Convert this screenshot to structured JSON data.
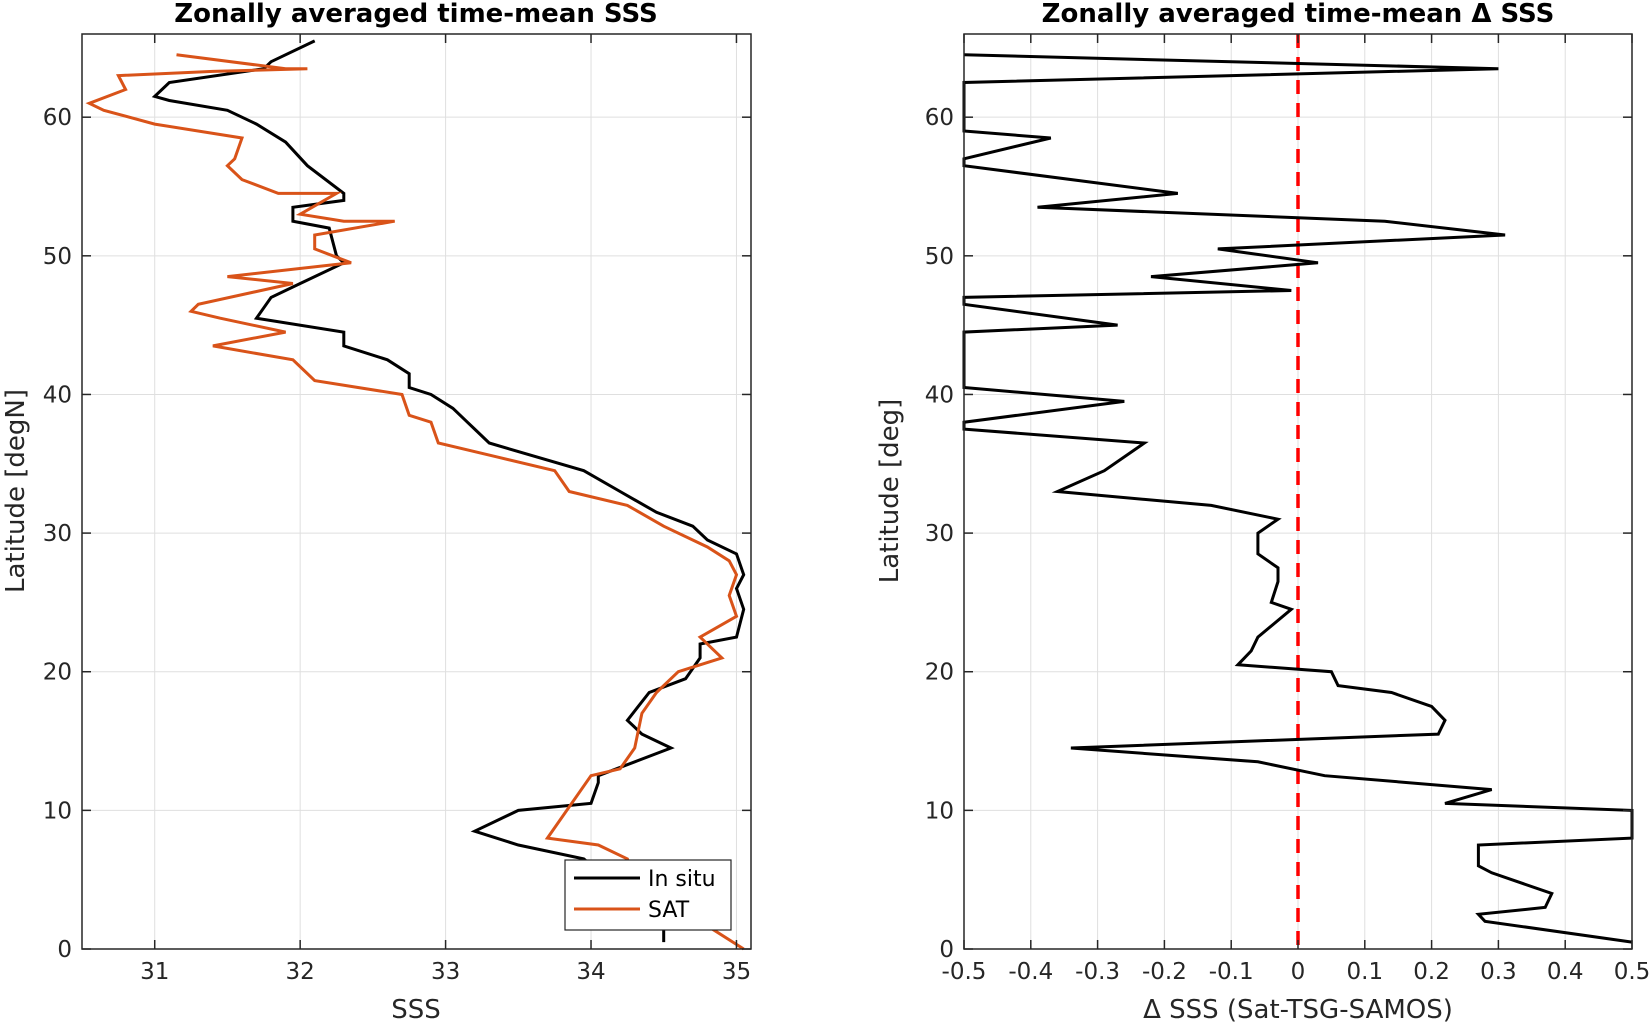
{
  "chart_data": [
    {
      "type": "line",
      "title": "Zonally averaged time-mean SSS",
      "xlabel": "SSS",
      "ylabel": "Latitude [degN]",
      "xlim": [
        30.5,
        35.1
      ],
      "ylim": [
        0,
        66
      ],
      "xticks": [
        31,
        32,
        33,
        34,
        35
      ],
      "yticks": [
        0,
        10,
        20,
        30,
        40,
        50,
        60
      ],
      "grid": true,
      "legend": {
        "position": "bottom-right"
      },
      "series": [
        {
          "name": "In situ",
          "color": "#000000",
          "x": [
            32.1,
            31.8,
            31.75,
            31.1,
            31.0,
            31.1,
            31.5,
            31.7,
            31.9,
            32.05,
            32.3,
            32.3,
            31.95,
            31.95,
            32.2,
            32.25,
            32.3,
            32.0,
            31.8,
            31.7,
            32.3,
            32.3,
            32.6,
            32.75,
            32.75,
            32.9,
            33.05,
            33.15,
            33.2,
            33.3,
            33.95,
            34.2,
            34.45,
            34.7,
            34.8,
            35.0,
            35.05,
            35.0,
            35.05,
            35.0,
            34.75,
            34.75,
            34.65,
            34.4,
            34.25,
            34.35,
            34.55,
            34.05,
            34.05,
            34.0,
            33.5,
            33.2,
            33.5,
            33.95,
            34.5,
            34.5
          ],
          "y": [
            65.5,
            64,
            63.5,
            62.5,
            61.5,
            61.2,
            60.5,
            59.5,
            58.2,
            56.5,
            54.5,
            54,
            53.5,
            52.5,
            52.0,
            50,
            49.5,
            48,
            47,
            45.5,
            44.5,
            43.5,
            42.5,
            41.5,
            40.5,
            40,
            39,
            38,
            37.5,
            36.5,
            34.5,
            33,
            31.5,
            30.5,
            29.5,
            28.5,
            27,
            26,
            24.5,
            22.5,
            22,
            21,
            19.5,
            18.5,
            16.5,
            15.5,
            14.5,
            12.5,
            12,
            10.5,
            10,
            8.5,
            7.5,
            6.5,
            1.5,
            0.5
          ]
        },
        {
          "name": "SAT",
          "color": "#D95319",
          "x": [
            31.15,
            31.9,
            32.05,
            31.4,
            30.75,
            30.8,
            30.55,
            30.65,
            31.0,
            31.6,
            31.55,
            31.5,
            31.6,
            31.85,
            32.25,
            32.0,
            32.3,
            32.65,
            32.1,
            32.1,
            32.35,
            31.5,
            31.95,
            31.3,
            31.25,
            31.45,
            31.9,
            31.4,
            31.95,
            32.1,
            32.7,
            32.75,
            32.9,
            32.95,
            33.35,
            33.75,
            33.85,
            34.25,
            34.5,
            34.8,
            34.95,
            35.0,
            34.95,
            35.0,
            34.75,
            34.9,
            34.6,
            34.45,
            34.35,
            34.3,
            34.2,
            34.0,
            33.7,
            34.05,
            34.25,
            34.3,
            34.75,
            35.05
          ],
          "y": [
            64.5,
            63.5,
            63.5,
            63.3,
            63,
            62,
            61,
            60.5,
            59.5,
            58.5,
            57,
            56.5,
            55.5,
            54.5,
            54.5,
            53,
            52.5,
            52.5,
            51.5,
            50.5,
            49.5,
            48.5,
            48,
            46.5,
            46,
            45.5,
            44.5,
            43.5,
            42.5,
            41,
            40,
            38.5,
            38,
            36.5,
            35.5,
            34.5,
            33,
            32,
            30.5,
            29,
            28,
            27,
            25.5,
            24,
            22.5,
            21,
            20,
            18.5,
            17,
            14.5,
            13,
            12.5,
            8,
            7.5,
            6.5,
            5,
            2,
            0
          ]
        }
      ]
    },
    {
      "type": "line",
      "title": "Zonally averaged time-mean Δ SSS",
      "xlabel": "Δ SSS (Sat-TSG-SAMOS)",
      "ylabel": "Latitude [deg]",
      "xlim": [
        -0.5,
        0.5
      ],
      "ylim": [
        0,
        66
      ],
      "xticks": [
        -0.5,
        -0.4,
        -0.3,
        -0.2,
        -0.1,
        0,
        0.1,
        0.2,
        0.3,
        0.4,
        0.5
      ],
      "yticks": [
        0,
        10,
        20,
        30,
        40,
        50,
        60
      ],
      "grid": true,
      "reference_line": {
        "x": 0,
        "color": "#FF0000",
        "style": "dashed"
      },
      "series": [
        {
          "name": "",
          "color": "#000000",
          "x": [
            -0.5,
            0.3,
            -0.5,
            -0.5,
            -0.5,
            -0.37,
            -0.5,
            -0.5,
            -0.5,
            -0.18,
            -0.39,
            0.13,
            0.31,
            -0.12,
            0.03,
            -0.22,
            -0.01,
            -0.5,
            -0.5,
            -0.5,
            -0.27,
            -0.5,
            -0.5,
            -0.5,
            -0.5,
            -0.26,
            -0.5,
            -0.5,
            -0.5,
            -0.23,
            -0.29,
            -0.36,
            -0.13,
            -0.03,
            -0.06,
            -0.06,
            -0.03,
            -0.03,
            -0.04,
            -0.01,
            -0.06,
            -0.07,
            -0.09,
            0.05,
            0.06,
            0.14,
            0.2,
            0.22,
            0.21,
            -0.34,
            -0.06,
            0.04,
            0.29,
            0.22,
            0.5,
            0.5,
            0.27,
            0.27,
            0.29,
            0.38,
            0.37,
            0.27,
            0.28,
            0.5
          ],
          "y": [
            64.5,
            63.5,
            62.5,
            62.5,
            59,
            58.5,
            57,
            56.5,
            56.5,
            54.5,
            53.5,
            52.5,
            51.5,
            50.5,
            49.5,
            48.5,
            47.5,
            47,
            46.5,
            46.5,
            45,
            44.5,
            44.5,
            40.5,
            40.5,
            39.5,
            38,
            38,
            37.5,
            36.5,
            34.5,
            33,
            32,
            31,
            30,
            28.5,
            27.5,
            26.5,
            25,
            24.5,
            22.5,
            21.5,
            20.5,
            20,
            19,
            18.5,
            17.5,
            16.5,
            15.5,
            14.5,
            13.5,
            12.5,
            11.5,
            10.5,
            10,
            8,
            7.5,
            6,
            5.5,
            4,
            3,
            2.5,
            2,
            0.5
          ]
        }
      ]
    }
  ],
  "legend_labels": {
    "in_situ": "In situ",
    "sat": "SAT"
  }
}
